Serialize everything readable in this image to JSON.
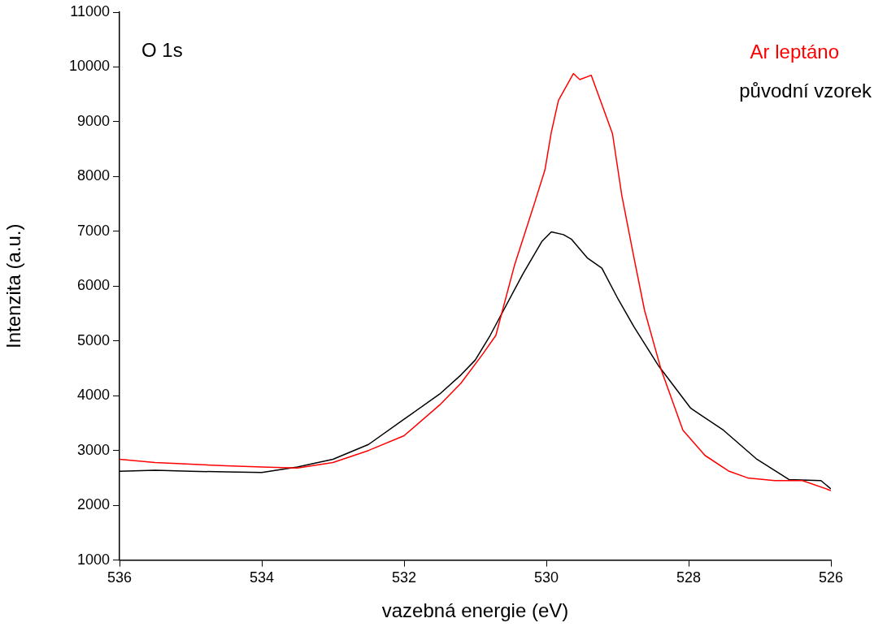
{
  "chart_data": {
    "type": "line",
    "xlabel": "vazebná energie (eV)",
    "ylabel": "Intenzita (a.u.)",
    "annotations": [
      "O 1s"
    ],
    "xlim": [
      536,
      526
    ],
    "xticks": [
      536,
      534,
      532,
      530,
      528,
      526
    ],
    "ylim": [
      1000,
      11000
    ],
    "yticks": [
      1000,
      2000,
      3000,
      4000,
      5000,
      6000,
      7000,
      8000,
      9000,
      10000,
      11000
    ],
    "grid": false,
    "legend": "top right",
    "marker": "none",
    "line_style": "solid",
    "series": [
      {
        "name": "Ar leptáno",
        "color": "#ff0000",
        "x": [
          536,
          535.5,
          535,
          534.5,
          534,
          533.5,
          533,
          532.5,
          532,
          531.5,
          531.2,
          530.9,
          530.71,
          530.45,
          530.17,
          530.02,
          529.93,
          529.83,
          529.62,
          529.53,
          529.37,
          529.19,
          529.07,
          528.94,
          528.77,
          528.62,
          528.39,
          528.08,
          527.77,
          527.43,
          527.17,
          526.79,
          526.4,
          526
        ],
        "values": [
          2840,
          2780,
          2750,
          2720,
          2700,
          2680,
          2780,
          3000,
          3270,
          3830,
          4230,
          4750,
          5100,
          6370,
          7500,
          8120,
          8810,
          9390,
          9880,
          9770,
          9850,
          9210,
          8780,
          7660,
          6530,
          5560,
          4490,
          3370,
          2910,
          2620,
          2500,
          2450,
          2450,
          2270
        ]
      },
      {
        "name": "původní vzorek",
        "color": "#000000",
        "x": [
          536,
          535.5,
          535,
          534.5,
          534,
          533.5,
          533,
          532.5,
          532,
          531.5,
          531.2,
          531,
          530.79,
          530.33,
          530.06,
          529.93,
          529.76,
          529.65,
          529.42,
          529.22,
          528.99,
          528.77,
          528.42,
          527.97,
          527.51,
          527.05,
          526.59,
          526.14,
          526
        ],
        "values": [
          2620,
          2640,
          2620,
          2610,
          2600,
          2700,
          2840,
          3110,
          3570,
          4030,
          4380,
          4650,
          5100,
          6220,
          6820,
          6990,
          6940,
          6860,
          6510,
          6330,
          5760,
          5260,
          4540,
          3770,
          3370,
          2850,
          2470,
          2450,
          2300
        ]
      }
    ]
  }
}
